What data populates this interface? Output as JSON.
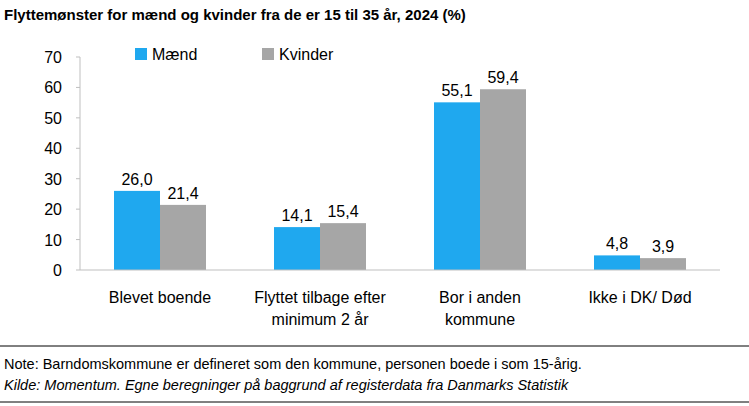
{
  "chart_data": {
    "type": "bar",
    "title": "Flyttemønster for mænd og kvinder fra de er 15 til 35 år, 2024 (%)",
    "categories": [
      "Blevet boende",
      "Flyttet tilbage efter\nminimum 2 år",
      "Bor i anden\nkommune",
      "Ikke i DK/ Død"
    ],
    "series": [
      {
        "name": "Mænd",
        "color": "#1fa8ef",
        "values": [
          26.0,
          14.1,
          55.1,
          4.8
        ],
        "value_labels": [
          "26,0",
          "14,1",
          "55,1",
          "4,8"
        ]
      },
      {
        "name": "Kvinder",
        "color": "#a6a6a6",
        "values": [
          21.4,
          15.4,
          59.4,
          3.9
        ],
        "value_labels": [
          "21,4",
          "15,4",
          "59,4",
          "3,9"
        ]
      }
    ],
    "ylim": [
      0,
      70
    ],
    "yticks": [
      0,
      10,
      20,
      30,
      40,
      50,
      60,
      70
    ],
    "grid": false,
    "legend": "top-left",
    "data_labels": true,
    "note": "Note: Barndomskommune er defineret som den kommune, personen boede i som 15-årig.",
    "source": "Kilde: Momentum. Egne beregninger på baggrund af registerdata fra Danmarks Statistik"
  }
}
